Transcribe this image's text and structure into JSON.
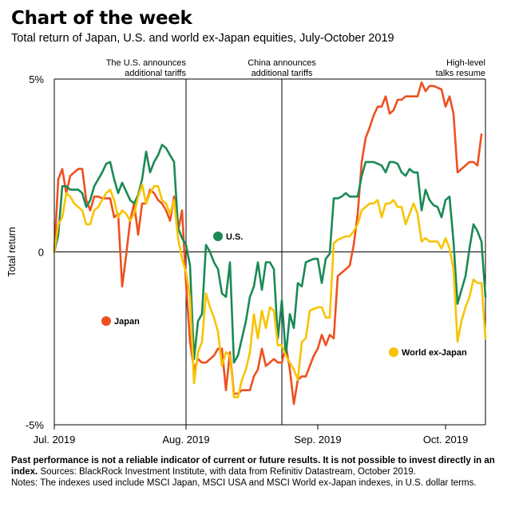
{
  "header": {
    "title": "Chart of the week",
    "subtitle": "Total return of Japan, U.S. and world ex-Japan equities, July-October 2019"
  },
  "footnote": {
    "bold_text": "Past performance is not a reliable indicator of current or future results. It is not possible to invest directly in an index.",
    "sources": "Sources: BlackRock Investment Institute, with data from Refinitiv Datastream, October 2019.",
    "notes": "Notes: The indexes used include MSCI Japan, MSCI USA and MSCI World ex-Japan indexes, in U.S. dollar terms."
  },
  "colors": {
    "japan": "#ee5020",
    "us": "#1a8a55",
    "world": "#f7c400",
    "axis": "#000000"
  },
  "chart_data": {
    "type": "line",
    "ylabel": "Total return",
    "ylim": [
      -5,
      5
    ],
    "yticks": [
      {
        "value": 5,
        "label": "5%"
      },
      {
        "value": 0,
        "label": "0"
      },
      {
        "value": -5,
        "label": "-5%"
      }
    ],
    "xlim": [
      0,
      108
    ],
    "xticks": [
      {
        "value": 0,
        "label": "Jul. 2019"
      },
      {
        "value": 33,
        "label": "Aug. 2019"
      },
      {
        "value": 66,
        "label": "Sep. 2019"
      },
      {
        "value": 98,
        "label": "Oct. 2019"
      }
    ],
    "annotations": [
      {
        "x": 33,
        "lines": [
          "The U.S. announces",
          "additional tariffs"
        ],
        "align": "end"
      },
      {
        "x": 57,
        "lines": [
          "China announces",
          "additional tariffs"
        ],
        "align": "middle"
      },
      {
        "x": 108,
        "lines": [
          "High-level",
          "talks resume"
        ],
        "align": "end"
      }
    ],
    "series": [
      {
        "name": "Japan",
        "color_key": "japan",
        "label": {
          "x": 13,
          "y": -2.0
        },
        "values": [
          0.0,
          2.1,
          2.4,
          1.7,
          2.2,
          2.3,
          2.4,
          2.4,
          1.5,
          1.2,
          1.6,
          1.6,
          1.55,
          1.55,
          1.55,
          1.0,
          1.1,
          -1.0,
          -0.1,
          0.9,
          1.4,
          0.5,
          1.4,
          1.4,
          1.8,
          1.7,
          1.5,
          1.4,
          1.2,
          0.9,
          1.6,
          0.6,
          1.2,
          -0.9,
          -2.6,
          -3.4,
          -3.1,
          -3.2,
          -3.2,
          -3.1,
          -3.0,
          -2.8,
          -2.8,
          -4.0,
          -2.9,
          -4.1,
          -4.1,
          -4.0,
          -4.0,
          -4.0,
          -3.6,
          -3.4,
          -2.8,
          -3.3,
          -3.2,
          -3.1,
          -3.2,
          -3.2,
          -2.7,
          -3.4,
          -4.4,
          -3.7,
          -3.6,
          -3.6,
          -3.3,
          -3.0,
          -2.8,
          -2.4,
          -2.7,
          -2.4,
          -2.5,
          -0.7,
          -0.6,
          -0.5,
          -0.4,
          0.2,
          1.1,
          2.6,
          3.3,
          3.6,
          3.95,
          4.2,
          4.2,
          4.5,
          4.0,
          4.1,
          4.4,
          4.4,
          4.5,
          4.5,
          4.5,
          4.5,
          4.9,
          4.65,
          4.8,
          4.8,
          4.75,
          4.7,
          4.2,
          4.5,
          4.0,
          2.3,
          2.4,
          2.5,
          2.6,
          2.6,
          2.5,
          3.4
        ]
      },
      {
        "name": "U.S.",
        "color_key": "us",
        "label": {
          "x": 41,
          "y": 0.45
        },
        "values": [
          0.0,
          0.5,
          1.9,
          1.9,
          1.8,
          1.8,
          1.8,
          1.7,
          1.3,
          1.5,
          1.9,
          2.1,
          2.3,
          2.55,
          2.6,
          2.1,
          1.7,
          2.0,
          1.75,
          1.5,
          1.4,
          1.65,
          2.1,
          2.9,
          2.3,
          2.6,
          2.8,
          3.1,
          3.0,
          2.8,
          2.6,
          0.7,
          0.4,
          0.2,
          -0.4,
          -3.1,
          -2.0,
          -1.8,
          0.2,
          0.0,
          -0.3,
          -0.5,
          -1.2,
          -1.3,
          -0.3,
          -3.2,
          -3.0,
          -2.5,
          -2.0,
          -1.3,
          -1.0,
          -0.3,
          -1.1,
          -0.3,
          -0.3,
          -0.5,
          -2.5,
          -1.4,
          -3.0,
          -1.8,
          -2.2,
          -0.9,
          -1.0,
          -0.3,
          -0.25,
          -0.2,
          -0.2,
          -0.9,
          -0.2,
          -0.05,
          1.55,
          1.55,
          1.6,
          1.7,
          1.6,
          1.6,
          1.6,
          2.2,
          2.6,
          2.6,
          2.6,
          2.55,
          2.5,
          2.3,
          2.6,
          2.6,
          2.55,
          2.3,
          2.2,
          2.4,
          2.3,
          2.3,
          1.2,
          1.8,
          1.5,
          1.35,
          1.3,
          1.0,
          1.5,
          1.6,
          0.3,
          -1.5,
          -1.1,
          -0.7,
          0.1,
          0.8,
          0.6,
          0.3,
          -1.3
        ]
      },
      {
        "name": "World ex-Japan",
        "color_key": "world",
        "label": {
          "x": 85,
          "y": -2.9
        },
        "values": [
          0.0,
          0.8,
          1.0,
          1.7,
          1.6,
          1.4,
          1.3,
          1.2,
          0.8,
          0.8,
          1.2,
          1.3,
          1.5,
          1.7,
          1.8,
          1.5,
          1.0,
          1.2,
          1.1,
          0.9,
          1.1,
          1.6,
          1.95,
          1.4,
          1.7,
          1.9,
          1.9,
          1.5,
          1.4,
          1.1,
          1.5,
          0.4,
          -0.2,
          -0.6,
          -1.3,
          -3.8,
          -2.9,
          -2.6,
          -1.2,
          -1.6,
          -1.9,
          -2.3,
          -3.3,
          -2.9,
          -3.0,
          -4.2,
          -4.2,
          -3.7,
          -3.4,
          -2.9,
          -1.8,
          -2.5,
          -1.7,
          -2.2,
          -1.6,
          -1.7,
          -2.7,
          -2.7,
          -3.0,
          -3.2,
          -3.4,
          -3.7,
          -2.6,
          -2.5,
          -1.7,
          -1.65,
          -1.6,
          -1.6,
          -1.9,
          -1.9,
          0.25,
          0.35,
          0.4,
          0.45,
          0.45,
          0.6,
          0.8,
          1.2,
          1.3,
          1.4,
          1.4,
          1.5,
          1.0,
          1.4,
          1.4,
          1.5,
          1.3,
          1.3,
          0.8,
          1.1,
          1.4,
          1.1,
          0.3,
          0.4,
          0.3,
          0.3,
          0.3,
          0.1,
          0.4,
          0.1,
          -0.5,
          -2.6,
          -2.0,
          -1.6,
          -1.3,
          -0.8,
          -0.9,
          -0.9,
          -2.5
        ]
      }
    ]
  }
}
